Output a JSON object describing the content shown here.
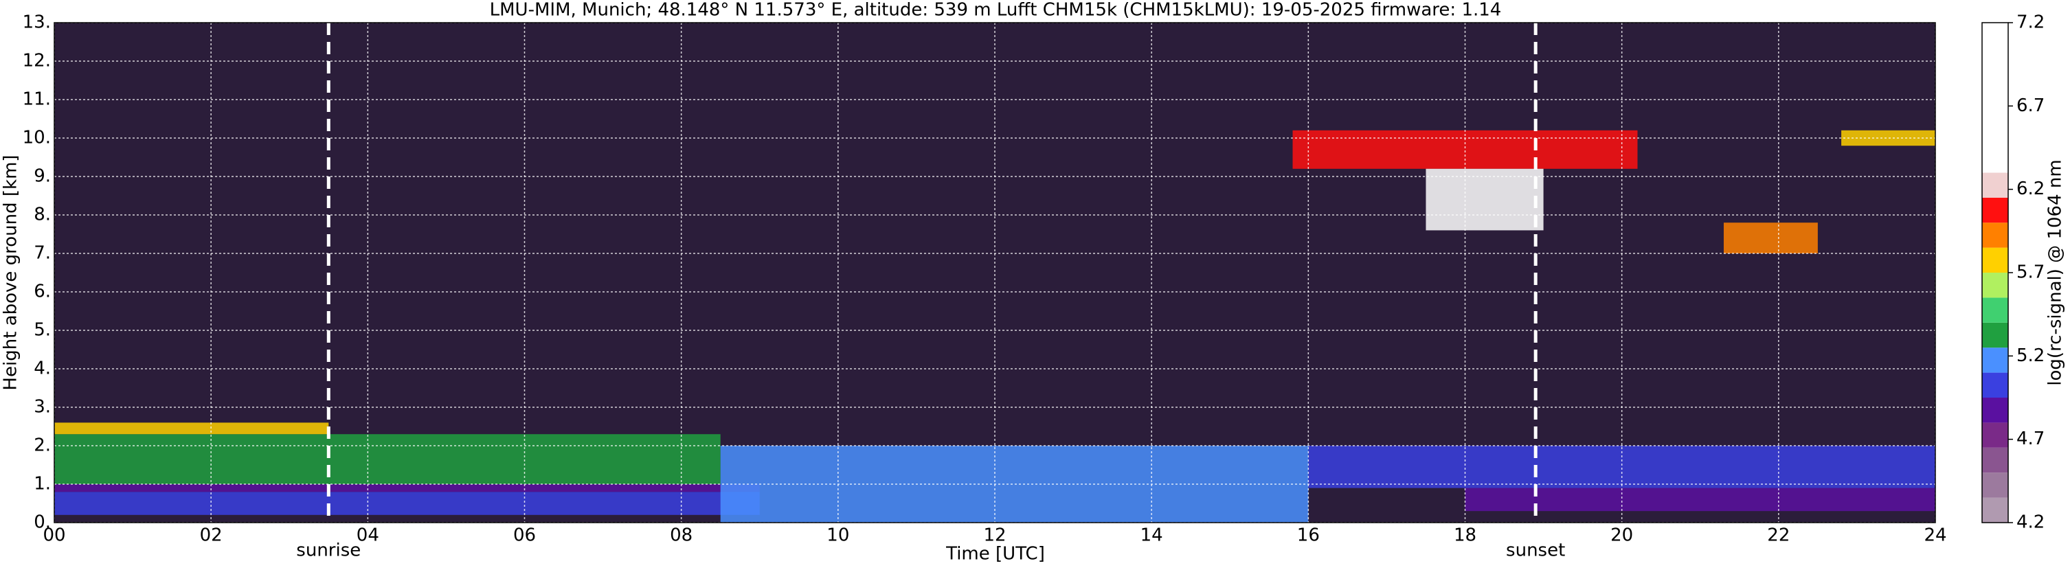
{
  "chart_data": {
    "type": "heatmap",
    "title": "LMU-MIM, Munich; 48.148° N 11.573° E, altitude: 539 m    Lufft CHM15k (CHM15kLMU): 19-05-2025    firmware: 1.14",
    "xlabel": "Time [UTC]",
    "ylabel": "Height above ground [km]",
    "xlim": [
      0,
      24
    ],
    "xticks": [
      {
        "value": 0,
        "label": "00"
      },
      {
        "value": 2,
        "label": "02"
      },
      {
        "value": 4,
        "label": "04"
      },
      {
        "value": 6,
        "label": "06"
      },
      {
        "value": 8,
        "label": "08"
      },
      10,
      12,
      14,
      16,
      18,
      20,
      22,
      24
    ],
    "ylim": [
      0,
      13
    ],
    "yticks": [
      {
        "value": 0,
        "label": "0."
      },
      {
        "value": 1,
        "label": "1."
      },
      {
        "value": 2,
        "label": "2."
      },
      {
        "value": 3,
        "label": "3."
      },
      {
        "value": 4,
        "label": "4."
      },
      {
        "value": 5,
        "label": "5."
      },
      {
        "value": 6,
        "label": "6."
      },
      {
        "value": 7,
        "label": "7."
      },
      {
        "value": 8,
        "label": "8."
      },
      {
        "value": 9,
        "label": "9."
      },
      {
        "value": 10,
        "label": "10."
      },
      {
        "value": 11,
        "label": "11."
      },
      {
        "value": 12,
        "label": "12."
      },
      {
        "value": 13,
        "label": "13."
      }
    ],
    "grid": true,
    "annotations": [
      {
        "text": "sunrise",
        "x": 3.5
      },
      {
        "text": "sunset",
        "x": 18.9
      }
    ],
    "colorbar": {
      "label": "log(rc-signal) @ 1064 nm",
      "lim": [
        4.2,
        7.2
      ],
      "ticks": [
        4.2,
        4.7,
        5.2,
        5.7,
        6.2,
        6.7,
        7.2
      ],
      "bins": [
        4.2,
        4.35,
        4.5,
        4.65,
        4.8,
        4.95,
        5.1,
        5.25,
        5.4,
        5.55,
        5.7,
        5.85,
        6.0,
        6.15,
        6.3,
        7.2
      ],
      "colors": [
        "#b09ab0",
        "#9c7a9e",
        "#8a5590",
        "#7a2a88",
        "#5a10a0",
        "#3a40e0",
        "#4a90ff",
        "#20a040",
        "#40d070",
        "#b0f060",
        "#ffd000",
        "#ff8000",
        "#ff1010",
        "#f0d0d0",
        "#ffffff"
      ]
    },
    "regions": [
      {
        "x": [
          0,
          9
        ],
        "y": [
          0.2,
          0.8
        ],
        "value": 5.0
      },
      {
        "x": [
          0,
          9
        ],
        "y": [
          0.8,
          1.0
        ],
        "value": 4.85
      },
      {
        "x": [
          0,
          8.5
        ],
        "y": [
          1.0,
          2.3
        ],
        "value": 5.3
      },
      {
        "x": [
          0,
          3.5
        ],
        "y": [
          2.3,
          2.6
        ],
        "value": 5.8
      },
      {
        "x": [
          8.5,
          16
        ],
        "y": [
          0,
          2.0
        ],
        "value": 5.15
      },
      {
        "x": [
          16,
          24
        ],
        "y": [
          0.9,
          2.0
        ],
        "value": 5.05
      },
      {
        "x": [
          18,
          24
        ],
        "y": [
          0.3,
          0.9
        ],
        "value": 4.85
      },
      {
        "x": [
          15.8,
          20.2
        ],
        "y": [
          9.2,
          10.2
        ],
        "value": 6.0
      },
      {
        "x": [
          17.5,
          19
        ],
        "y": [
          7.6,
          9.2
        ],
        "value": 6.5
      },
      {
        "x": [
          21.3,
          22.5
        ],
        "y": [
          7.0,
          7.8
        ],
        "value": 5.9
      },
      {
        "x": [
          22.8,
          24
        ],
        "y": [
          9.8,
          10.2
        ],
        "value": 5.8
      }
    ]
  }
}
